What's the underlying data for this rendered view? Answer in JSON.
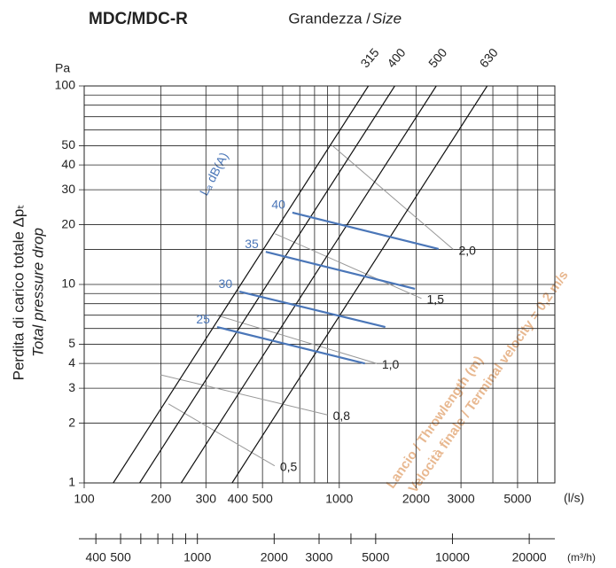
{
  "chart_data": {
    "type": "line",
    "title": "MDC/MDC-R",
    "subtitle": "Grandezza / ",
    "subtitle_italic": "Size",
    "y_label": "Perdita di carico totale Δpₜ",
    "y_label2": "Total pressure drop",
    "y_unit": "Pa",
    "x_unit": "(l/s)",
    "x2_unit": "(m³/h)",
    "log_scale": true,
    "grid": true,
    "xlim": [
      100,
      7000
    ],
    "xticks": [
      100,
      200,
      300,
      400,
      500,
      1000,
      2000,
      3000,
      5000
    ],
    "xgrid_minor": [
      600,
      700,
      800,
      900,
      4000,
      6000,
      7000
    ],
    "ylim": [
      1,
      100
    ],
    "yticks": [
      1,
      2,
      3,
      4,
      5,
      10,
      20,
      30,
      40,
      50,
      100
    ],
    "ygrid_minor": [
      6,
      7,
      8,
      9,
      15,
      60,
      70,
      80,
      90
    ],
    "x2lim": [
      360,
      25200
    ],
    "x2ticks": [
      400,
      500,
      1000,
      2000,
      3000,
      5000,
      10000,
      20000
    ],
    "x2minor": [
      600,
      700,
      800,
      900,
      4000
    ],
    "size_lines": {
      "color": "#111",
      "series": [
        {
          "name": "315",
          "q": [
            130,
            1300
          ],
          "p": [
            1,
            100
          ]
        },
        {
          "name": "400",
          "q": [
            165,
            1650
          ],
          "p": [
            1,
            100
          ]
        },
        {
          "name": "500",
          "q": [
            240,
            2400
          ],
          "p": [
            1,
            100
          ]
        },
        {
          "name": "630",
          "q": [
            380,
            3800
          ],
          "p": [
            1,
            100
          ]
        }
      ]
    },
    "noise_label": "Lₐ dB(A)",
    "noise_color": "#4a76b8",
    "noise_lines": [
      {
        "name": "40",
        "q": [
          655,
          2450
        ],
        "p": [
          23,
          15.1
        ]
      },
      {
        "name": "35",
        "q": [
          515,
          1980
        ],
        "p": [
          14.6,
          9.5
        ]
      },
      {
        "name": "30",
        "q": [
          406,
          1515
        ],
        "p": [
          9.2,
          6.1
        ]
      },
      {
        "name": "25",
        "q": [
          332,
          1260
        ],
        "p": [
          6.1,
          4.0
        ]
      }
    ],
    "throw_label": "Lancio / Throwlength (m)",
    "velocity_label": "Velocità finale / Terminal velocity = 0,2 m/s",
    "throw_color": "#999",
    "throw_lines": [
      {
        "name": "2,0",
        "q": [
          940,
          2800
        ],
        "p": [
          50,
          15
        ]
      },
      {
        "name": "1,5",
        "q": [
          560,
          2100
        ],
        "p": [
          18,
          8.5
        ]
      },
      {
        "name": "1,0",
        "q": [
          330,
          1400
        ],
        "p": [
          7,
          4
        ]
      },
      {
        "name": "0,8",
        "q": [
          200,
          900
        ],
        "p": [
          3.5,
          2.2
        ]
      },
      {
        "name": "0,5",
        "q": [
          214,
          558
        ],
        "p": [
          2.5,
          1.22
        ]
      }
    ]
  }
}
